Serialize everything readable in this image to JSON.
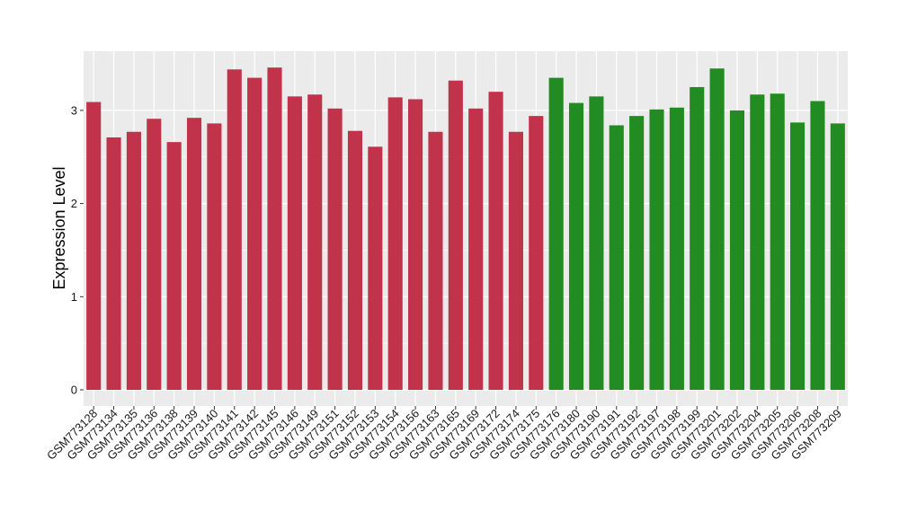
{
  "chart_data": {
    "type": "bar",
    "title": "",
    "xlabel": "",
    "ylabel": "Expression Level",
    "ylim": [
      -0.16,
      3.5
    ],
    "yticks": [
      0,
      1,
      2,
      3
    ],
    "grid": true,
    "legend": "none",
    "colors": {
      "group1": "#C0334A",
      "group2": "#228B22",
      "panel": "#EBEBEB",
      "grid": "#FFFFFF"
    },
    "categories": [
      "GSM773128",
      "GSM773134",
      "GSM773135",
      "GSM773136",
      "GSM773138",
      "GSM773139",
      "GSM773140",
      "GSM773141",
      "GSM773142",
      "GSM773145",
      "GSM773146",
      "GSM773149",
      "GSM773151",
      "GSM773152",
      "GSM773153",
      "GSM773154",
      "GSM773156",
      "GSM773163",
      "GSM773165",
      "GSM773169",
      "GSM773172",
      "GSM773174",
      "GSM773175",
      "GSM773176",
      "GSM773180",
      "GSM773190",
      "GSM773191",
      "GSM773192",
      "GSM773197",
      "GSM773198",
      "GSM773199",
      "GSM773201",
      "GSM773202",
      "GSM773204",
      "GSM773205",
      "GSM773206",
      "GSM773208",
      "GSM773209"
    ],
    "values": [
      3.09,
      2.71,
      2.77,
      2.91,
      2.66,
      2.92,
      2.86,
      3.44,
      3.35,
      3.46,
      3.15,
      3.17,
      3.02,
      2.78,
      2.61,
      3.14,
      3.12,
      2.77,
      3.32,
      3.02,
      3.2,
      2.77,
      2.94,
      3.35,
      3.08,
      3.15,
      2.84,
      2.94,
      3.01,
      3.03,
      3.25,
      3.45,
      3.0,
      3.17,
      3.18,
      2.87,
      3.1,
      2.86
    ],
    "groups": [
      "group1",
      "group1",
      "group1",
      "group1",
      "group1",
      "group1",
      "group1",
      "group1",
      "group1",
      "group1",
      "group1",
      "group1",
      "group1",
      "group1",
      "group1",
      "group1",
      "group1",
      "group1",
      "group1",
      "group1",
      "group1",
      "group1",
      "group1",
      "group2",
      "group2",
      "group2",
      "group2",
      "group2",
      "group2",
      "group2",
      "group2",
      "group2",
      "group2",
      "group2",
      "group2",
      "group2",
      "group2",
      "group2"
    ]
  }
}
